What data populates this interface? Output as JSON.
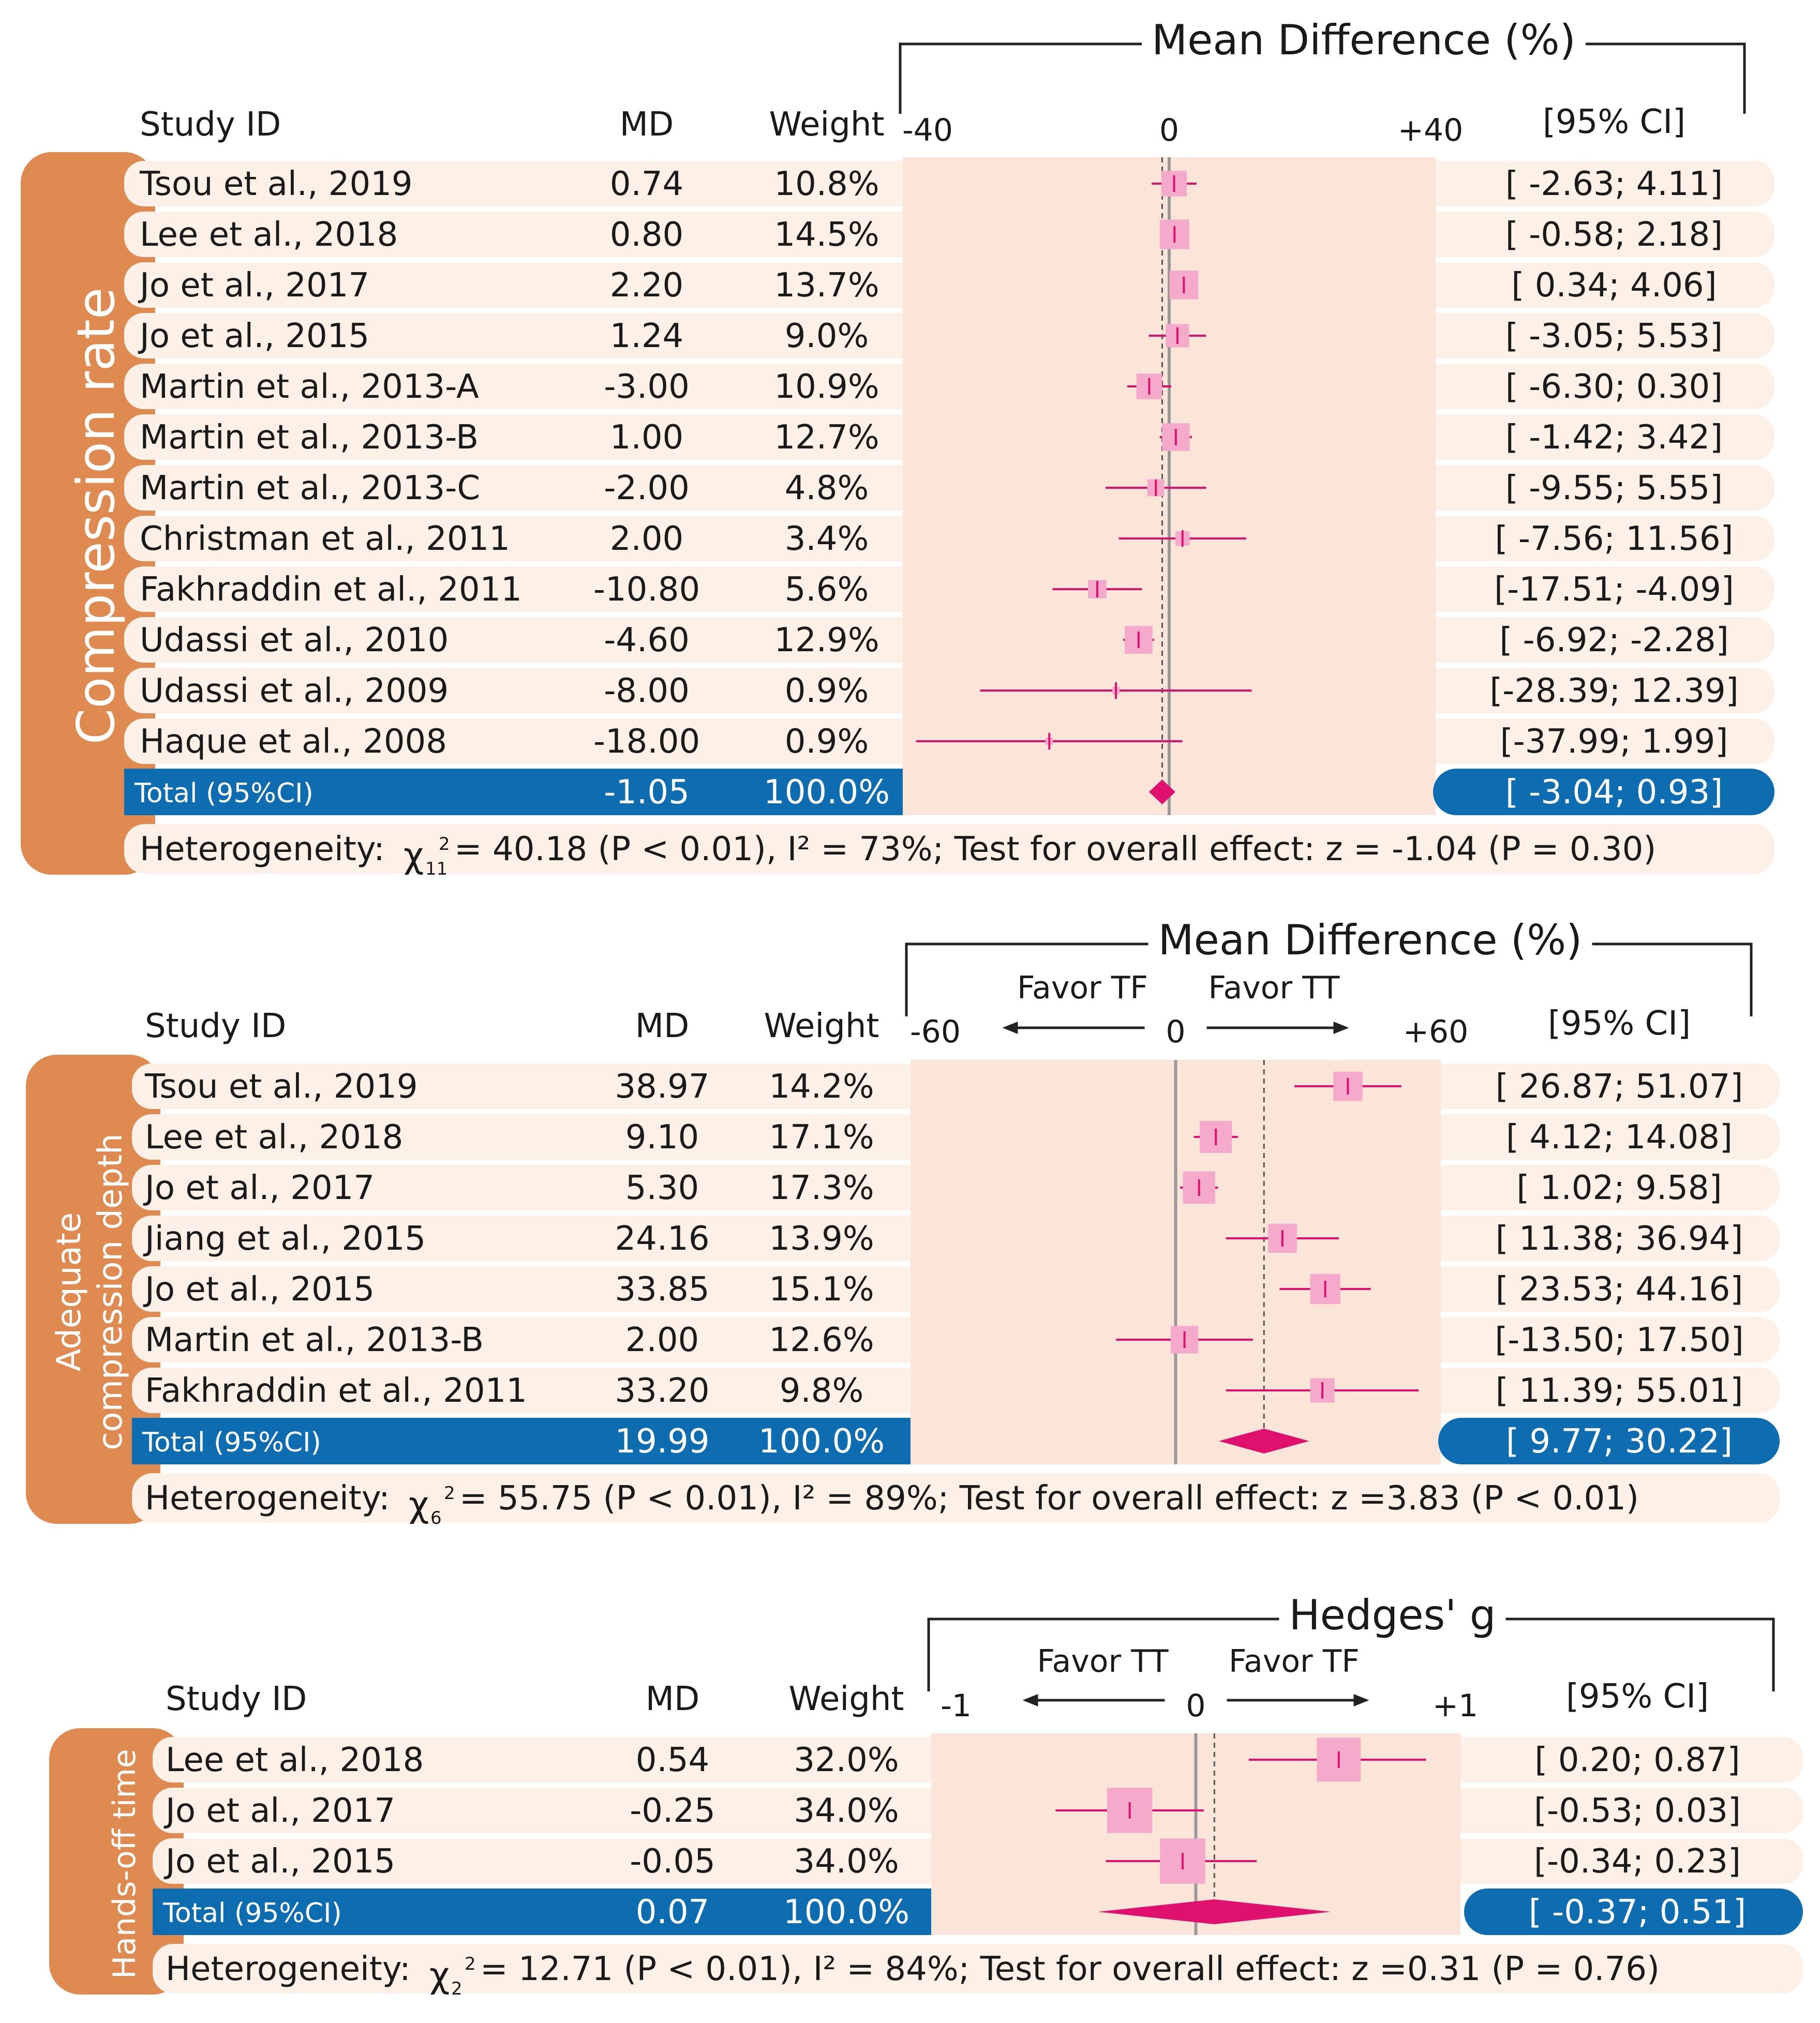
{
  "colors": {
    "orange": "#DE8A50",
    "row_band": "#FDF0E6",
    "plot_band": "#FAE5D8",
    "total_blue": "#0E6CB0",
    "pink": "#E0106E",
    "pink_box": "#F5A9CB",
    "zero_line": "#999999",
    "text": "#1a1a1a"
  },
  "chart_data": [
    {
      "type": "forest",
      "panel_label": "Compression rate",
      "measure": "Mean Difference (%)",
      "headers": {
        "study": "Study ID",
        "md": "MD",
        "weight": "Weight",
        "ci": "[95% CI]"
      },
      "axis": {
        "min": -40,
        "max": 40,
        "ticks": [
          "-40",
          "0",
          "+40"
        ],
        "favor_left": "",
        "favor_right": ""
      },
      "studies": [
        {
          "name": "Tsou et al., 2019",
          "md": "0.74",
          "weight": "10.8%",
          "ci": "[ -2.63;  4.11]",
          "est": 0.74,
          "lo": -2.63,
          "hi": 4.11,
          "w": 10.8
        },
        {
          "name": "Lee et al., 2018",
          "md": "0.80",
          "weight": "14.5%",
          "ci": "[ -0.58;  2.18]",
          "est": 0.8,
          "lo": -0.58,
          "hi": 2.18,
          "w": 14.5
        },
        {
          "name": "Jo et al., 2017",
          "md": "2.20",
          "weight": "13.7%",
          "ci": "[  0.34;  4.06]",
          "est": 2.2,
          "lo": 0.34,
          "hi": 4.06,
          "w": 13.7
        },
        {
          "name": "Jo et al., 2015",
          "md": "1.24",
          "weight": "9.0%",
          "ci": "[ -3.05;  5.53]",
          "est": 1.24,
          "lo": -3.05,
          "hi": 5.53,
          "w": 9.0
        },
        {
          "name": "Martin et al., 2013-A",
          "md": "-3.00",
          "weight": "10.9%",
          "ci": "[ -6.30;  0.30]",
          "est": -3.0,
          "lo": -6.3,
          "hi": 0.3,
          "w": 10.9
        },
        {
          "name": "Martin et al., 2013-B",
          "md": "1.00",
          "weight": "12.7%",
          "ci": "[ -1.42;  3.42]",
          "est": 1.0,
          "lo": -1.42,
          "hi": 3.42,
          "w": 12.7
        },
        {
          "name": "Martin et al., 2013-C",
          "md": "-2.00",
          "weight": "4.8%",
          "ci": "[ -9.55;  5.55]",
          "est": -2.0,
          "lo": -9.55,
          "hi": 5.55,
          "w": 4.8
        },
        {
          "name": "Christman et al., 2011",
          "md": "2.00",
          "weight": "3.4%",
          "ci": "[ -7.56; 11.56]",
          "est": 2.0,
          "lo": -7.56,
          "hi": 11.56,
          "w": 3.4
        },
        {
          "name": "Fakhraddin et al., 2011",
          "md": "-10.80",
          "weight": "5.6%",
          "ci": "[-17.51; -4.09]",
          "est": -10.8,
          "lo": -17.51,
          "hi": -4.09,
          "w": 5.6
        },
        {
          "name": "Udassi et al., 2010",
          "md": "-4.60",
          "weight": "12.9%",
          "ci": "[ -6.92; -2.28]",
          "est": -4.6,
          "lo": -6.92,
          "hi": -2.28,
          "w": 12.9
        },
        {
          "name": "Udassi et al., 2009",
          "md": "-8.00",
          "weight": "0.9%",
          "ci": "[-28.39; 12.39]",
          "est": -8.0,
          "lo": -28.39,
          "hi": 12.39,
          "w": 0.9
        },
        {
          "name": "Haque et al., 2008",
          "md": "-18.00",
          "weight": "0.9%",
          "ci": "[-37.99;  1.99]",
          "est": -18.0,
          "lo": -37.99,
          "hi": 1.99,
          "w": 0.9
        }
      ],
      "total": {
        "label": "Total (95%CI)",
        "md": "-1.05",
        "weight": "100.0%",
        "ci": "[ -3.04;  0.93]",
        "est": -1.05,
        "lo": -3.04,
        "hi": 0.93
      },
      "heterogeneity": {
        "prefix": "Heterogeneity:",
        "chi": "χ",
        "df": "11",
        "sup": "2",
        "rest": "= 40.18 (P < 0.01), I² = 73%; Test for overall effect:  z = -1.04 (P = 0.30)"
      }
    },
    {
      "type": "forest",
      "panel_label": "Adequate compression depth",
      "panel_label_lines": [
        "Adequate",
        "compression depth"
      ],
      "measure": "Mean Difference (%)",
      "headers": {
        "study": "Study ID",
        "md": "MD",
        "weight": "Weight",
        "ci": "[95% CI]"
      },
      "axis": {
        "min": -60,
        "max": 60,
        "ticks": [
          "-60",
          "0",
          "+60"
        ],
        "favor_left": "Favor TF",
        "favor_right": "Favor TT"
      },
      "studies": [
        {
          "name": "Tsou et al., 2019",
          "md": "38.97",
          "weight": "14.2%",
          "ci": "[ 26.87; 51.07]",
          "est": 38.97,
          "lo": 26.87,
          "hi": 51.07,
          "w": 14.2
        },
        {
          "name": "Lee et al., 2018",
          "md": "9.10",
          "weight": "17.1%",
          "ci": "[  4.12; 14.08]",
          "est": 9.1,
          "lo": 4.12,
          "hi": 14.08,
          "w": 17.1
        },
        {
          "name": "Jo et al., 2017",
          "md": "5.30",
          "weight": "17.3%",
          "ci": "[  1.02;  9.58]",
          "est": 5.3,
          "lo": 1.02,
          "hi": 9.58,
          "w": 17.3
        },
        {
          "name": "Jiang et al., 2015",
          "md": "24.16",
          "weight": "13.9%",
          "ci": "[ 11.38; 36.94]",
          "est": 24.16,
          "lo": 11.38,
          "hi": 36.94,
          "w": 13.9
        },
        {
          "name": "Jo et al., 2015",
          "md": "33.85",
          "weight": "15.1%",
          "ci": "[ 23.53; 44.16]",
          "est": 33.85,
          "lo": 23.53,
          "hi": 44.16,
          "w": 15.1
        },
        {
          "name": "Martin et al., 2013-B",
          "md": "2.00",
          "weight": "12.6%",
          "ci": "[-13.50; 17.50]",
          "est": 2.0,
          "lo": -13.5,
          "hi": 17.5,
          "w": 12.6
        },
        {
          "name": "Fakhraddin et al., 2011",
          "md": "33.20",
          "weight": "9.8%",
          "ci": "[ 11.39; 55.01]",
          "est": 33.2,
          "lo": 11.39,
          "hi": 55.01,
          "w": 9.8
        }
      ],
      "total": {
        "label": "Total (95%CI)",
        "md": "19.99",
        "weight": "100.0%",
        "ci": "[  9.77; 30.22]",
        "est": 19.99,
        "lo": 9.77,
        "hi": 30.22
      },
      "heterogeneity": {
        "prefix": "Heterogeneity:",
        "chi": "χ",
        "df": "6",
        "sup": "2",
        "rest": "= 55.75 (P < 0.01), I² = 89%; Test for overall effect:  z =3.83 (P < 0.01)"
      }
    },
    {
      "type": "forest",
      "panel_label": "Hands-off time",
      "measure": "Hedges' g",
      "headers": {
        "study": "Study ID",
        "md": "MD",
        "weight": "Weight",
        "ci": "[95% CI]"
      },
      "axis": {
        "min": -1,
        "max": 1,
        "ticks": [
          "-1",
          "0",
          "+1"
        ],
        "favor_left": "Favor TT",
        "favor_right": "Favor TF"
      },
      "studies": [
        {
          "name": "Lee et al., 2018",
          "md": "0.54",
          "weight": "32.0%",
          "ci": "[ 0.20; 0.87]",
          "est": 0.54,
          "lo": 0.2,
          "hi": 0.87,
          "w": 32.0
        },
        {
          "name": "Jo et al., 2017",
          "md": "-0.25",
          "weight": "34.0%",
          "ci": "[-0.53; 0.03]",
          "est": -0.25,
          "lo": -0.53,
          "hi": 0.03,
          "w": 34.0
        },
        {
          "name": "Jo et al., 2015",
          "md": "-0.05",
          "weight": "34.0%",
          "ci": "[-0.34; 0.23]",
          "est": -0.05,
          "lo": -0.34,
          "hi": 0.23,
          "w": 34.0
        }
      ],
      "total": {
        "label": "Total (95%CI)",
        "md": "0.07",
        "weight": "100.0%",
        "ci": "[ -0.37; 0.51]",
        "est": 0.07,
        "lo": -0.37,
        "hi": 0.51
      },
      "heterogeneity": {
        "prefix": "Heterogeneity:",
        "chi": "χ",
        "df": "2",
        "sup": "2",
        "rest": "= 12.71 (P < 0.01), I² = 84%; Test for overall effect:  z =0.31 (P = 0.76)"
      }
    }
  ]
}
